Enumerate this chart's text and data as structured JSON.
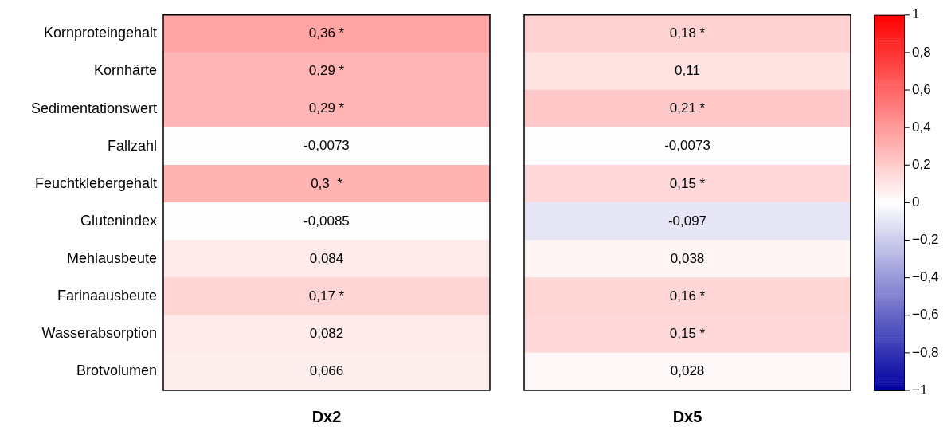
{
  "chart_data": {
    "type": "heatmap",
    "categories": [
      "Dx2",
      "Dx5"
    ],
    "y_categories": [
      "Kornproteingehalt",
      "Kornhärte",
      "Sedimentationswert",
      "Fallzahl",
      "Feuchtklebergehalt",
      "Glutenindex",
      "Mehlausbeute",
      "Farinaausbeute",
      "Wasserabsorption",
      "Brotvolumen"
    ],
    "cells": [
      [
        0.36,
        0.18
      ],
      [
        0.29,
        0.11
      ],
      [
        0.29,
        0.21
      ],
      [
        -0.0073,
        -0.0073
      ],
      [
        0.3,
        0.15
      ],
      [
        -0.0085,
        -0.097
      ],
      [
        0.084,
        0.038
      ],
      [
        0.17,
        0.16
      ],
      [
        0.082,
        0.15
      ],
      [
        0.066,
        0.028
      ]
    ],
    "cell_labels": [
      [
        "0,36 *",
        "0,18 *"
      ],
      [
        "0,29 *",
        "0,11"
      ],
      [
        "0,29 *",
        "0,21 *"
      ],
      [
        "-0,0073",
        "-0,0073"
      ],
      [
        "0,3  *",
        "0,15 *"
      ],
      [
        "-0,0085",
        "-0,097"
      ],
      [
        "0,084",
        "0,038"
      ],
      [
        "0,17 *",
        "0,16 *"
      ],
      [
        "0,082",
        "0,15 *"
      ],
      [
        "0,066",
        "0,028"
      ]
    ],
    "clim": [
      -1,
      1
    ],
    "cticks": [
      {
        "value": -1,
        "label": "−1"
      },
      {
        "value": -0.8,
        "label": "−0,8"
      },
      {
        "value": -0.6,
        "label": "−0,6"
      },
      {
        "value": -0.4,
        "label": "−0,4"
      },
      {
        "value": -0.2,
        "label": "−0,2"
      },
      0,
      {
        "value": 0.2,
        "label": "0,2"
      },
      {
        "value": 0.4,
        "label": "0,4"
      },
      {
        "value": 0.6,
        "label": "0,6"
      },
      {
        "value": 0.8,
        "label": "0,8"
      },
      1
    ]
  }
}
